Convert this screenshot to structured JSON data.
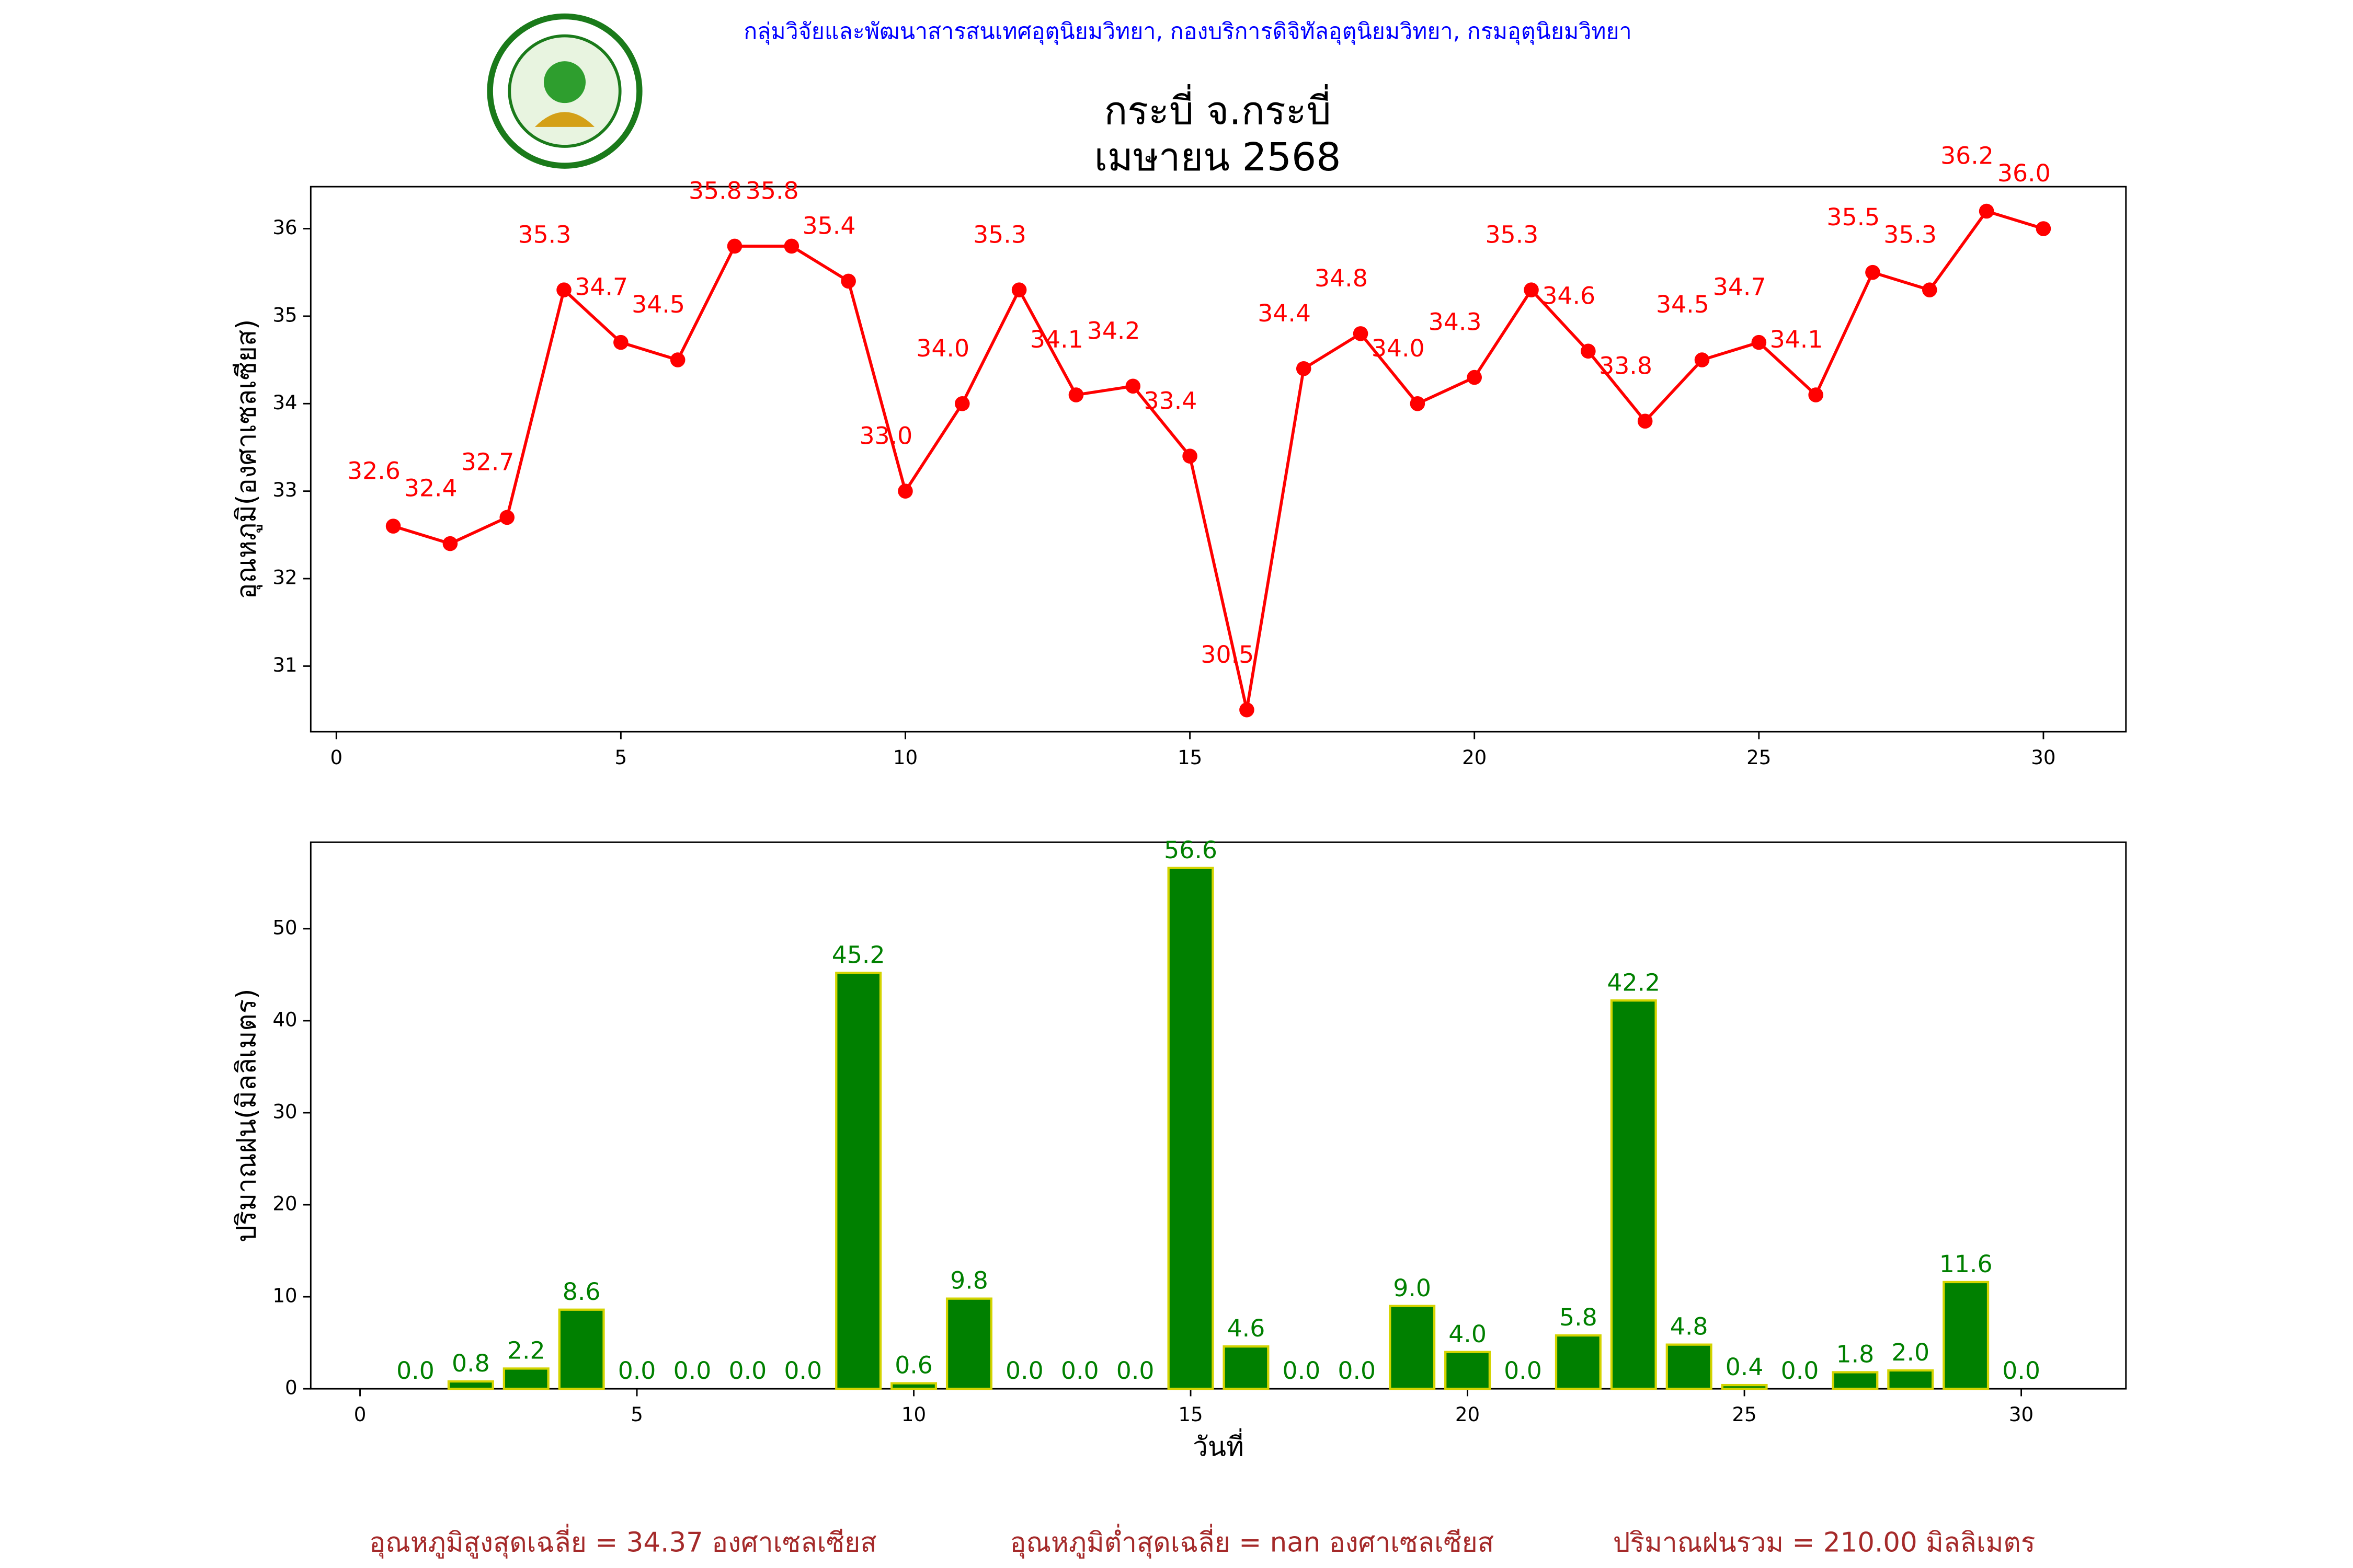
{
  "header": "กลุ่มวิจัยและพัฒนาสารสนเทศอุตุนิยมวิทยา, กองบริการดิจิทัลอุตุนิยมวิทยา, กรมอุตุนิยมวิทยา",
  "title": [
    "กระบี่ จ.กระบี่",
    "เมษายน 2568"
  ],
  "chart_data": [
    {
      "type": "line",
      "ylabel": "อุณหภูมิ(องศาเซลเซียส)",
      "color": "#ff0000",
      "x": [
        1,
        2,
        3,
        4,
        5,
        6,
        7,
        8,
        9,
        10,
        11,
        12,
        13,
        14,
        15,
        16,
        17,
        18,
        19,
        20,
        21,
        22,
        23,
        24,
        25,
        26,
        27,
        28,
        29,
        30
      ],
      "values": [
        32.6,
        32.4,
        32.7,
        35.3,
        34.7,
        34.5,
        35.8,
        35.8,
        35.4,
        33.0,
        34.0,
        35.3,
        34.1,
        34.2,
        33.4,
        30.5,
        34.4,
        34.8,
        34.0,
        34.3,
        35.3,
        34.6,
        33.8,
        34.5,
        34.7,
        34.1,
        35.5,
        35.3,
        36.2,
        36.0
      ],
      "value_labels": [
        "32.6",
        "32.4",
        "32.7",
        "35.3",
        "34.7",
        "34.5",
        "35.8",
        "35.8",
        "35.4",
        "33.0",
        "34.0",
        "35.3",
        "34.1",
        "34.2",
        "33.4",
        "30.5",
        "34.4",
        "34.8",
        "34.0",
        "34.3",
        "35.3",
        "34.6",
        "33.8",
        "34.5",
        "34.7",
        "34.1",
        "35.5",
        "35.3",
        "36.2",
        "36.0"
      ],
      "xlim": [
        -0.45,
        31.45
      ],
      "ylim": [
        30.25,
        36.48
      ],
      "xticks": [
        0,
        5,
        10,
        15,
        20,
        25,
        30
      ],
      "yticks": [
        31,
        32,
        33,
        34,
        35,
        36
      ]
    },
    {
      "type": "bar",
      "ylabel": "ปริมาณฝน(มิลลิเมตร)",
      "xlabel": "วันที่",
      "color": "#008000",
      "edgecolor": "#d4d400",
      "x": [
        1,
        2,
        3,
        4,
        5,
        6,
        7,
        8,
        9,
        10,
        11,
        12,
        13,
        14,
        15,
        16,
        17,
        18,
        19,
        20,
        21,
        22,
        23,
        24,
        25,
        26,
        27,
        28,
        29,
        30
      ],
      "values": [
        0,
        0.8,
        2.2,
        8.6,
        0,
        0,
        0,
        0,
        45.2,
        0.6,
        9.8,
        0,
        0,
        0,
        56.6,
        4.6,
        0,
        0,
        9.0,
        4.0,
        0,
        5.8,
        42.2,
        4.8,
        0.4,
        0,
        1.8,
        2.0,
        11.6,
        0
      ],
      "value_labels": [
        "0.0",
        "0.8",
        "2.2",
        "8.6",
        "0.0",
        "0.0",
        "0.0",
        "0.0",
        "45.2",
        "0.6",
        "9.8",
        "0.0",
        "0.0",
        "0.0",
        "56.6",
        "4.6",
        "0.0",
        "0.0",
        "9.0",
        "4.0",
        "0.0",
        "5.8",
        "42.2",
        "4.8",
        "0.4",
        "0.0",
        "1.8",
        "2.0",
        "11.6",
        "0.0"
      ],
      "xlim": [
        -0.89,
        31.89
      ],
      "ylim": [
        0,
        59.4
      ],
      "xticks": [
        0,
        5,
        10,
        15,
        20,
        25,
        30
      ],
      "yticks": [
        0,
        10,
        20,
        30,
        40,
        50
      ]
    }
  ],
  "footer": [
    "อุณหภูมิสูงสุดเฉลี่ย = 34.37 องศาเซลเซียส",
    "อุณหภูมิต่ำสุดเฉลี่ย = nan องศาเซลเซียส",
    "ปริมาณฝนรวม = 210.00 มิลลิเมตร"
  ]
}
